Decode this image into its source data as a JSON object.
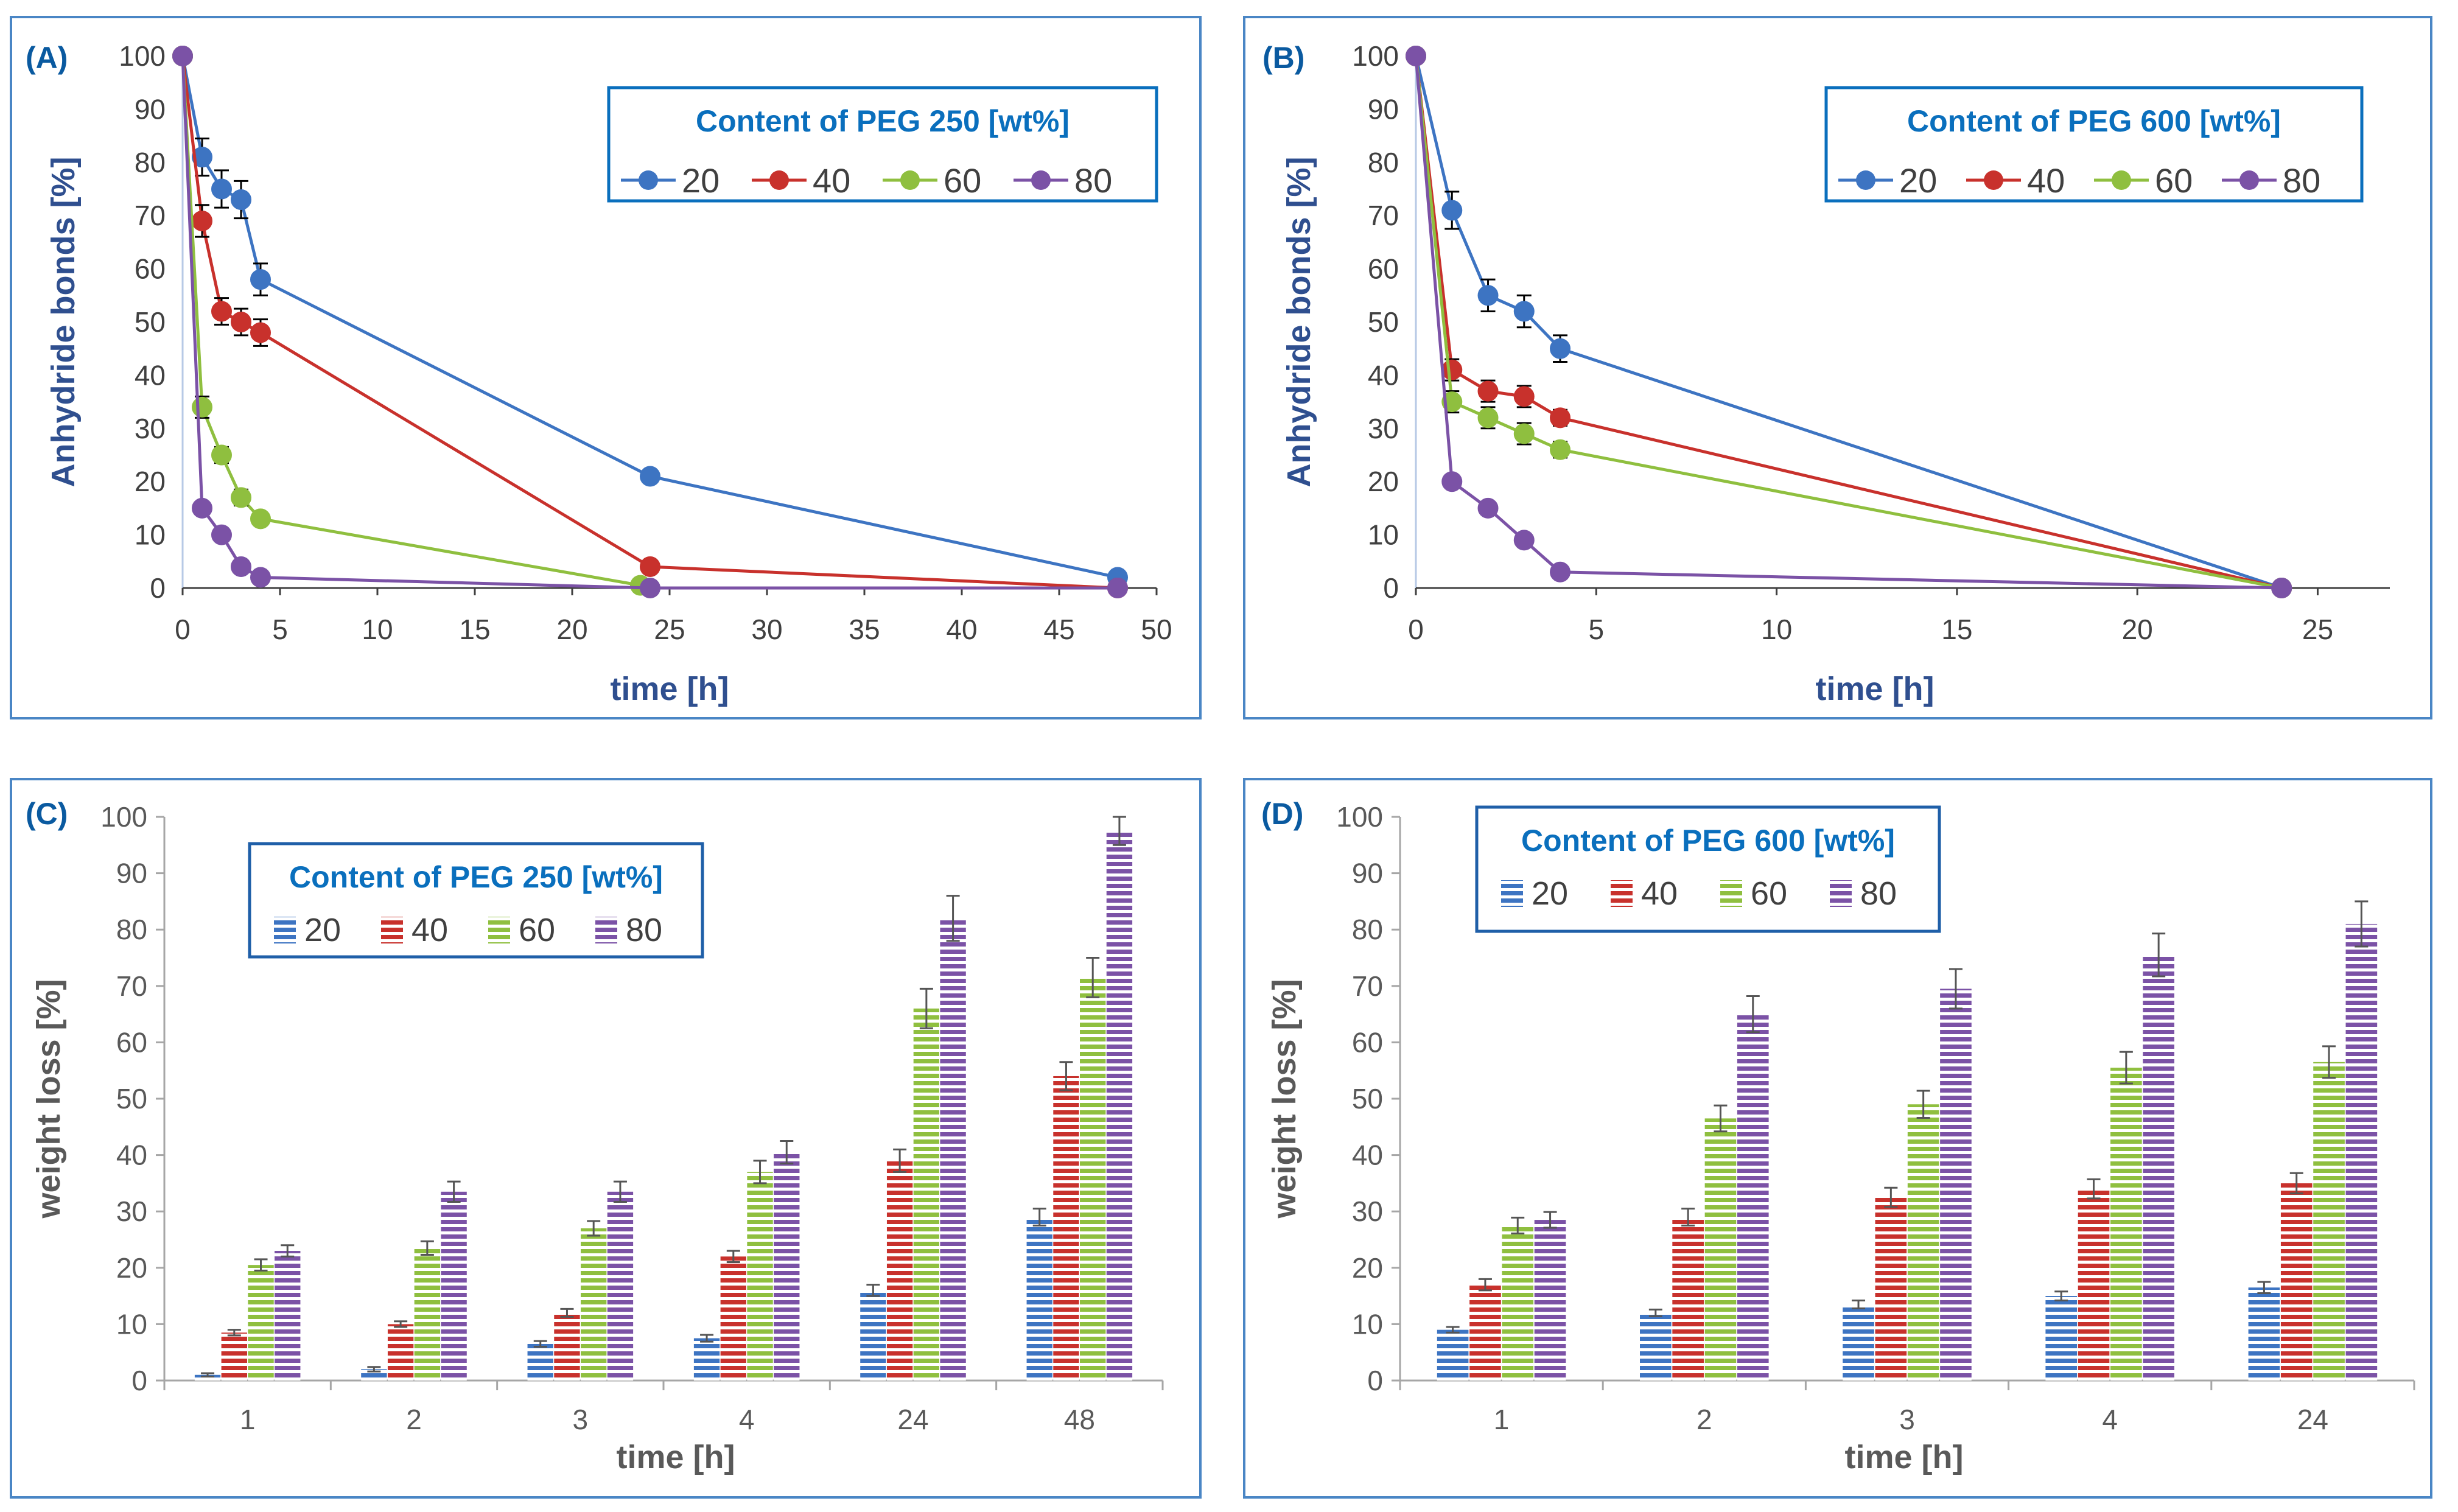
{
  "colors": {
    "frame": "#4a86c5",
    "axis": "#a6a6a6",
    "tick_text": "#595959",
    "series": [
      "#3d74c2",
      "#c8312c",
      "#8fbf3f",
      "#7b52a6"
    ],
    "panel_label": "#0a5aa0",
    "legend_title": "#0a6fbd",
    "axis_title_line": "#2f4f8f",
    "axis_title_bar": "#595959"
  },
  "chart_data": [
    {
      "id": "A",
      "type": "line",
      "panel_label": "(A)",
      "legend_title": "Content of PEG 250 [wt%]",
      "xlabel": "time [h]",
      "ylabel": "Anhydride bonds [%]",
      "xlim": [
        0,
        50
      ],
      "ylim": [
        0,
        100
      ],
      "xticks": [
        0,
        5,
        10,
        15,
        20,
        25,
        30,
        35,
        40,
        45,
        50
      ],
      "yticks": [
        0,
        10,
        20,
        30,
        40,
        50,
        60,
        70,
        80,
        90,
        100
      ],
      "series": [
        {
          "name": "20",
          "x": [
            0,
            1,
            2,
            3,
            4,
            24,
            48
          ],
          "y": [
            100,
            81,
            75,
            73,
            58,
            21,
            2
          ],
          "err": [
            0,
            3.5,
            3.5,
            3.5,
            3,
            1,
            1
          ]
        },
        {
          "name": "40",
          "x": [
            0,
            1,
            2,
            3,
            4,
            24,
            48
          ],
          "y": [
            100,
            69,
            52,
            50,
            48,
            4,
            0
          ],
          "err": [
            0,
            3,
            2.5,
            2.5,
            2.5,
            1,
            0.5
          ]
        },
        {
          "name": "60",
          "x": [
            0,
            1,
            2,
            3,
            4,
            23.5
          ],
          "y": [
            100,
            34,
            25,
            17,
            13,
            0.5
          ],
          "err": [
            0,
            2,
            1.5,
            1.5,
            1,
            0.5
          ]
        },
        {
          "name": "80",
          "x": [
            0,
            1,
            2,
            3,
            4,
            24,
            48
          ],
          "y": [
            100,
            15,
            10,
            4,
            2,
            0,
            0
          ],
          "err": [
            0,
            1,
            1,
            1,
            1,
            0.5,
            0.5
          ]
        }
      ]
    },
    {
      "id": "B",
      "type": "line",
      "panel_label": "(B)",
      "legend_title": "Content of PEG 600 [wt%]",
      "xlabel": "time [h]",
      "ylabel": "Anhydride bonds [%]",
      "xlim": [
        0,
        27
      ],
      "ylim": [
        0,
        100
      ],
      "xticks": [
        0,
        5,
        10,
        15,
        20,
        25
      ],
      "yticks": [
        0,
        10,
        20,
        30,
        40,
        50,
        60,
        70,
        80,
        90,
        100
      ],
      "series": [
        {
          "name": "20",
          "x": [
            0,
            1,
            2,
            3,
            4,
            24
          ],
          "y": [
            100,
            71,
            55,
            52,
            45,
            0
          ],
          "err": [
            0,
            3.5,
            3,
            3,
            2.5,
            1
          ]
        },
        {
          "name": "40",
          "x": [
            0,
            1,
            2,
            3,
            4,
            24
          ],
          "y": [
            100,
            41,
            37,
            36,
            32,
            0
          ],
          "err": [
            0,
            2,
            2,
            2,
            1.5,
            0.5
          ]
        },
        {
          "name": "60",
          "x": [
            0,
            1,
            2,
            3,
            4,
            24
          ],
          "y": [
            100,
            35,
            32,
            29,
            26,
            0
          ],
          "err": [
            0,
            2,
            2,
            2,
            1.5,
            0.5
          ]
        },
        {
          "name": "80",
          "x": [
            0,
            1,
            2,
            3,
            4,
            24
          ],
          "y": [
            100,
            20,
            15,
            9,
            3,
            0
          ],
          "err": [
            0,
            1,
            1,
            1,
            1,
            0.5
          ]
        }
      ]
    },
    {
      "id": "C",
      "type": "bar",
      "panel_label": "(C)",
      "legend_title": "Content of PEG 250 [wt%]",
      "xlabel": "time [h]",
      "ylabel": "weight loss [%]",
      "ylim": [
        0,
        100
      ],
      "yticks": [
        0,
        10,
        20,
        30,
        40,
        50,
        60,
        70,
        80,
        90,
        100
      ],
      "categories": [
        "1",
        "2",
        "3",
        "4",
        "24",
        "48"
      ],
      "series": [
        {
          "name": "20",
          "values": [
            1,
            2,
            6.5,
            7.5,
            16,
            29
          ],
          "err": [
            0.3,
            0.4,
            0.5,
            0.6,
            1,
            1.5
          ]
        },
        {
          "name": "40",
          "values": [
            8.5,
            10,
            12,
            22,
            39,
            54
          ],
          "err": [
            0.5,
            0.5,
            0.7,
            1,
            2,
            2.5
          ]
        },
        {
          "name": "60",
          "values": [
            20.5,
            23.5,
            27,
            37,
            66,
            71.5
          ],
          "err": [
            1,
            1.2,
            1.3,
            2,
            3.5,
            3.5
          ]
        },
        {
          "name": "80",
          "values": [
            23,
            33.5,
            33.5,
            40.5,
            82,
            97.5
          ],
          "err": [
            1,
            1.8,
            1.8,
            2,
            4,
            2.5
          ]
        }
      ]
    },
    {
      "id": "D",
      "type": "bar",
      "panel_label": "(D)",
      "legend_title": "Content of PEG 600 [wt%]",
      "xlabel": "time [h]",
      "ylabel": "weight loss [%]",
      "ylim": [
        0,
        100
      ],
      "yticks": [
        0,
        10,
        20,
        30,
        40,
        50,
        60,
        70,
        80,
        90,
        100
      ],
      "categories": [
        "1",
        "2",
        "3",
        "4",
        "24"
      ],
      "series": [
        {
          "name": "20",
          "values": [
            9,
            12,
            13.5,
            15,
            16.5
          ],
          "err": [
            0.5,
            0.6,
            0.7,
            0.8,
            1
          ]
        },
        {
          "name": "40",
          "values": [
            17,
            29,
            32.5,
            34,
            35
          ],
          "err": [
            1,
            1.5,
            1.7,
            1.7,
            1.8
          ]
        },
        {
          "name": "60",
          "values": [
            27.5,
            46.5,
            49,
            55.5,
            56.5
          ],
          "err": [
            1.4,
            2.3,
            2.4,
            2.8,
            2.8
          ]
        },
        {
          "name": "80",
          "values": [
            28.5,
            65,
            69.5,
            75.5,
            81
          ],
          "err": [
            1.4,
            3.2,
            3.5,
            3.8,
            4
          ]
        }
      ]
    }
  ]
}
